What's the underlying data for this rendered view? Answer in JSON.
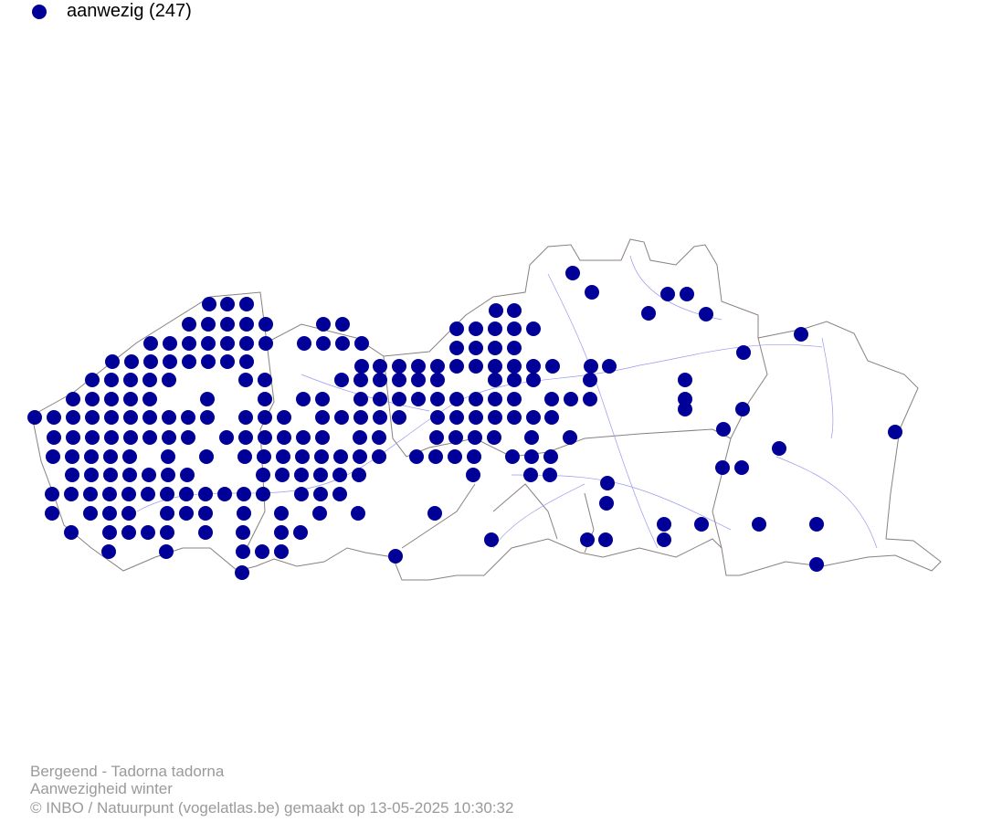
{
  "legend": {
    "label": "aanwezig (247)"
  },
  "footer": {
    "species": "Bergeend - Tadorna tadorna",
    "subtitle": "Aanwezigheid winter",
    "credit": "© INBO / Natuurpunt (vogelatlas.be) gemaakt op 13-05-2025 10:30:32"
  }
}
